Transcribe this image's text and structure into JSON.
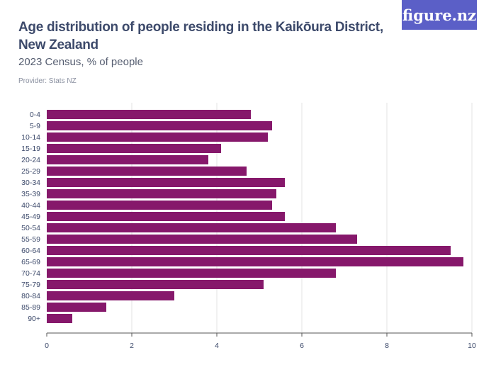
{
  "header": {
    "title": "Age distribution of people residing in the Kaikōura District, New Zealand",
    "subtitle": "2023 Census, % of people",
    "provider": "Provider: Stats NZ",
    "logo": "figure.nz"
  },
  "chart_data": {
    "type": "bar",
    "orientation": "horizontal",
    "title": "Age distribution of people residing in the Kaikōura District, New Zealand",
    "subtitle": "2023 Census, % of people",
    "categories": [
      "0-4",
      "5-9",
      "10-14",
      "15-19",
      "20-24",
      "25-29",
      "30-34",
      "35-39",
      "40-44",
      "45-49",
      "50-54",
      "55-59",
      "60-64",
      "65-69",
      "70-74",
      "75-79",
      "80-84",
      "85-89",
      "90+"
    ],
    "values": [
      4.8,
      5.3,
      5.2,
      4.1,
      3.8,
      4.7,
      5.6,
      5.4,
      5.3,
      5.6,
      6.8,
      7.3,
      9.5,
      9.8,
      6.8,
      5.1,
      3.0,
      1.4,
      0.6
    ],
    "xlim": [
      0,
      10
    ],
    "xticks": [
      0,
      2,
      4,
      6,
      8,
      10
    ],
    "grid": true,
    "bar_color": "#86186b"
  }
}
